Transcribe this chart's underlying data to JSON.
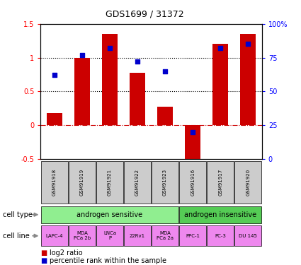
{
  "title": "GDS1699 / 31372",
  "samples": [
    "GSM91918",
    "GSM91919",
    "GSM91921",
    "GSM91922",
    "GSM91923",
    "GSM91916",
    "GSM91917",
    "GSM91920"
  ],
  "log2_ratio": [
    0.18,
    1.0,
    1.35,
    0.78,
    0.27,
    -0.57,
    1.2,
    1.35
  ],
  "percentile_rank": [
    62,
    77,
    82,
    72,
    65,
    20,
    82,
    85
  ],
  "ylim_left": [
    -0.5,
    1.5
  ],
  "ylim_right": [
    0,
    100
  ],
  "cell_type_groups": [
    {
      "label": "androgen sensitive",
      "start": 0,
      "end": 5,
      "color": "#90ee90"
    },
    {
      "label": "androgen insensitive",
      "start": 5,
      "end": 8,
      "color": "#55cc55"
    }
  ],
  "cell_lines": [
    {
      "label": "LAPC-4"
    },
    {
      "label": "MDA\nPCa 2b"
    },
    {
      "label": "LNCa\nP"
    },
    {
      "label": "22Rv1"
    },
    {
      "label": "MDA\nPCa 2a"
    },
    {
      "label": "PPC-1"
    },
    {
      "label": "PC-3"
    },
    {
      "label": "DU 145"
    }
  ],
  "bar_color": "#cc0000",
  "dot_color": "#0000cc",
  "hline_zero_color": "#cc0000",
  "hline_dotted_color": "#000000",
  "sample_bg_color": "#cccccc",
  "cell_line_color": "#ee88ee",
  "legend_labels": [
    "log2 ratio",
    "percentile rank within the sample"
  ],
  "left_labels": [
    "cell type",
    "cell line"
  ]
}
